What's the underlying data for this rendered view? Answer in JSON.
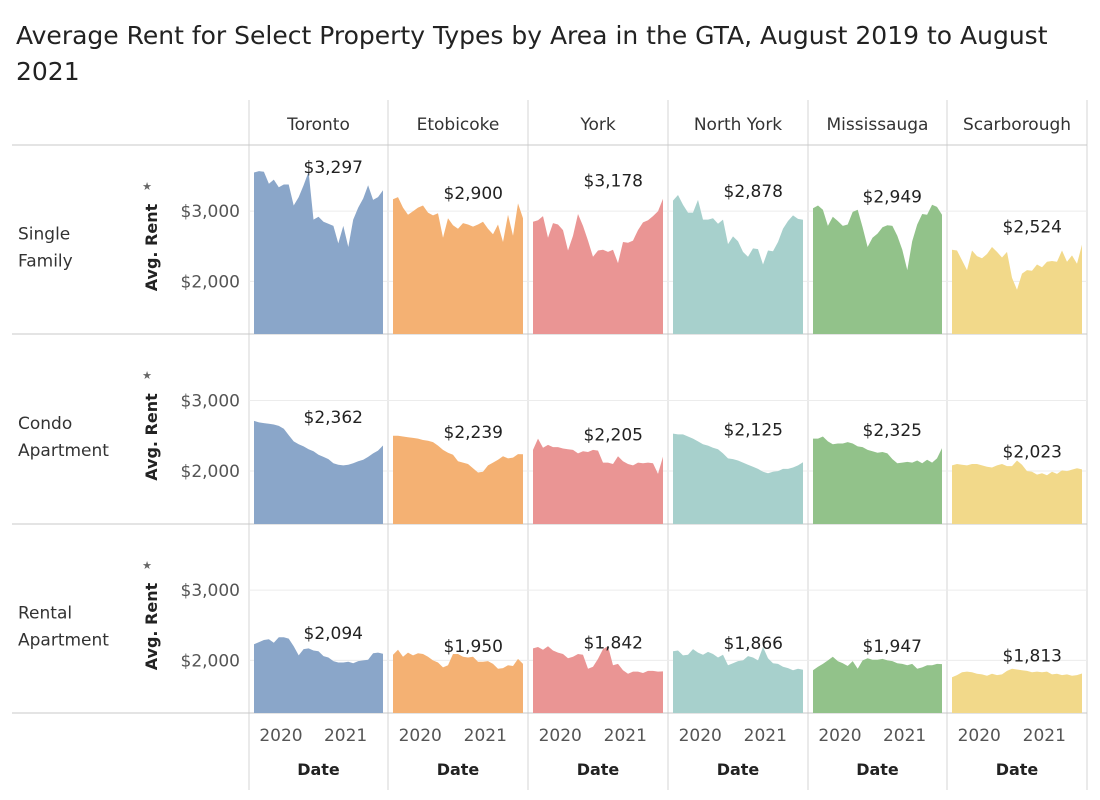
{
  "title": "Average Rent for Select Property Types by Area in the GTA, August 2019 to August 2021",
  "chart_data": {
    "type": "area",
    "title": "Average Rent for Select Property Types by Area in the GTA, August 2019 to August 2021",
    "xlabel": "Date",
    "ylabel": "Avg. Rent",
    "x_ticks": [
      "2020",
      "2021"
    ],
    "x_range": [
      "2019-08",
      "2021-08"
    ],
    "y_ticks": [
      {
        "label": "$2,000",
        "value": 2000
      },
      {
        "label": "$3,000",
        "value": 3000
      }
    ],
    "ylim": [
      1250,
      3800
    ],
    "grid": true,
    "columns": [
      {
        "name": "Toronto",
        "color": "#8aa6c9"
      },
      {
        "name": "Etobicoke",
        "color": "#f4b173"
      },
      {
        "name": "York",
        "color": "#ea9594"
      },
      {
        "name": "North York",
        "color": "#a7d0cc"
      },
      {
        "name": "Mississauga",
        "color": "#92c28a"
      },
      {
        "name": "Scarborough",
        "color": "#f2d98a"
      }
    ],
    "rows": [
      {
        "name": "Single\nFamily",
        "series": [
          {
            "area": "Toronto",
            "label": "$3,297",
            "values": [
              3550,
              3570,
              3560,
              3390,
              3450,
              3340,
              3380,
              3380,
              3080,
              3200,
              3370,
              3560,
              2880,
              2920,
              2850,
              2820,
              2790,
              2540,
              2790,
              2490,
              2880,
              3050,
              3180,
              3370,
              3160,
              3200,
              3297
            ]
          },
          {
            "area": "Etobicoke",
            "label": "$2,900",
            "values": [
              3170,
              3200,
              3050,
              2950,
              3000,
              3050,
              3080,
              2980,
              2940,
              2970,
              2620,
              2900,
              2800,
              2750,
              2830,
              2810,
              2780,
              2810,
              2850,
              2750,
              2670,
              2810,
              2560,
              2950,
              2650,
              3110,
              2900
            ]
          },
          {
            "area": "York",
            "label": "$3,178",
            "values": [
              2850,
              2870,
              2930,
              2620,
              2830,
              2810,
              2730,
              2440,
              2650,
              2960,
              2790,
              2580,
              2350,
              2440,
              2450,
              2420,
              2450,
              2260,
              2560,
              2550,
              2580,
              2730,
              2840,
              2870,
              2930,
              3000,
              3178
            ]
          },
          {
            "area": "North York",
            "label": "$2,878",
            "values": [
              3150,
              3230,
              3090,
              2980,
              2980,
              3160,
              2880,
              2880,
              2900,
              2820,
              2880,
              2530,
              2640,
              2570,
              2420,
              2350,
              2470,
              2460,
              2240,
              2440,
              2430,
              2560,
              2750,
              2860,
              2940,
              2890,
              2878
            ]
          },
          {
            "area": "Mississauga",
            "label": "$2,949",
            "values": [
              3040,
              3080,
              3020,
              2790,
              2920,
              2860,
              2790,
              2810,
              2990,
              3020,
              2770,
              2490,
              2620,
              2680,
              2770,
              2800,
              2790,
              2650,
              2450,
              2160,
              2570,
              2810,
              2960,
              2950,
              3090,
              3060,
              2949
            ]
          },
          {
            "area": "Scarborough",
            "label": "$2,524",
            "values": [
              2450,
              2440,
              2300,
              2160,
              2440,
              2360,
              2330,
              2390,
              2490,
              2420,
              2340,
              2420,
              2050,
              1880,
              2110,
              2160,
              2150,
              2240,
              2200,
              2280,
              2290,
              2280,
              2440,
              2280,
              2370,
              2250,
              2524
            ]
          }
        ]
      },
      {
        "name": "Condo\nApartment",
        "series": [
          {
            "area": "Toronto",
            "label": "$2,362",
            "values": [
              2710,
              2690,
              2680,
              2670,
              2660,
              2640,
              2600,
              2510,
              2420,
              2380,
              2350,
              2310,
              2280,
              2230,
              2200,
              2170,
              2110,
              2090,
              2080,
              2090,
              2110,
              2140,
              2160,
              2200,
              2250,
              2290,
              2362
            ]
          },
          {
            "area": "Etobicoke",
            "label": "$2,239",
            "values": [
              2500,
              2500,
              2490,
              2480,
              2470,
              2460,
              2440,
              2430,
              2410,
              2360,
              2300,
              2260,
              2230,
              2140,
              2120,
              2100,
              2040,
              1980,
              1990,
              2080,
              2120,
              2160,
              2210,
              2180,
              2190,
              2240,
              2239
            ]
          },
          {
            "area": "York",
            "label": "$2,205",
            "values": [
              2300,
              2460,
              2330,
              2370,
              2340,
              2340,
              2320,
              2310,
              2300,
              2250,
              2280,
              2270,
              2300,
              2290,
              2120,
              2120,
              2100,
              2210,
              2140,
              2100,
              2080,
              2120,
              2110,
              2120,
              2110,
              1960,
              2205
            ]
          },
          {
            "area": "North York",
            "label": "$2,125",
            "values": [
              2530,
              2520,
              2520,
              2490,
              2460,
              2420,
              2380,
              2360,
              2330,
              2310,
              2250,
              2180,
              2170,
              2150,
              2120,
              2090,
              2060,
              2030,
              1990,
              1970,
              1990,
              2000,
              2030,
              2030,
              2050,
              2080,
              2125
            ]
          },
          {
            "area": "Mississauga",
            "label": "$2,325",
            "values": [
              2460,
              2460,
              2490,
              2420,
              2380,
              2390,
              2390,
              2410,
              2390,
              2350,
              2340,
              2300,
              2280,
              2260,
              2270,
              2250,
              2170,
              2110,
              2120,
              2130,
              2120,
              2150,
              2110,
              2160,
              2120,
              2180,
              2325
            ]
          },
          {
            "area": "Scarborough",
            "label": "$2,023",
            "values": [
              2080,
              2100,
              2090,
              2080,
              2100,
              2100,
              2080,
              2060,
              2050,
              2080,
              2100,
              2070,
              2070,
              2150,
              2090,
              2000,
              1990,
              1950,
              1970,
              1940,
              1990,
              1960,
              2010,
              2000,
              2020,
              2040,
              2023
            ]
          }
        ]
      },
      {
        "name": "Rental\nApartment",
        "series": [
          {
            "area": "Toronto",
            "label": "$2,094",
            "values": [
              2230,
              2260,
              2290,
              2300,
              2250,
              2330,
              2330,
              2310,
              2200,
              2070,
              2160,
              2170,
              2140,
              2130,
              2060,
              2040,
              1990,
              1970,
              1970,
              1980,
              1960,
              1990,
              2000,
              2010,
              2100,
              2110,
              2094
            ]
          },
          {
            "area": "Etobicoke",
            "label": "$1,950",
            "values": [
              2080,
              2150,
              2050,
              2110,
              2070,
              2100,
              2090,
              2050,
              2000,
              1970,
              1900,
              1930,
              2090,
              2090,
              2050,
              2040,
              2050,
              1980,
              1980,
              1990,
              1950,
              1880,
              1890,
              1930,
              1920,
              2020,
              1950
            ]
          },
          {
            "area": "York",
            "label": "$1,842",
            "values": [
              2170,
              2190,
              2150,
              2200,
              2140,
              2110,
              2090,
              2030,
              2050,
              2090,
              2080,
              1880,
              1910,
              2020,
              2160,
              2200,
              1930,
              1950,
              1860,
              1810,
              1840,
              1840,
              1820,
              1850,
              1850,
              1840,
              1842
            ]
          },
          {
            "area": "North York",
            "label": "$1,866",
            "values": [
              2130,
              2140,
              2070,
              2080,
              2160,
              2110,
              2080,
              2120,
              2090,
              2040,
              2080,
              1930,
              1960,
              1990,
              2000,
              2060,
              2040,
              2000,
              2190,
              2030,
              1960,
              1950,
              1910,
              1890,
              1860,
              1880,
              1866
            ]
          },
          {
            "area": "Mississauga",
            "label": "$1,947",
            "values": [
              1860,
              1910,
              1950,
              2000,
              2050,
              1990,
              1960,
              1920,
              1990,
              1880,
              2000,
              2030,
              2010,
              2010,
              2020,
              2000,
              1990,
              1960,
              1950,
              1930,
              1950,
              1880,
              1900,
              1930,
              1930,
              1950,
              1947
            ]
          },
          {
            "area": "Scarborough",
            "label": "$1,813",
            "values": [
              1760,
              1790,
              1830,
              1840,
              1830,
              1810,
              1800,
              1780,
              1810,
              1790,
              1800,
              1850,
              1880,
              1870,
              1860,
              1850,
              1830,
              1840,
              1830,
              1840,
              1800,
              1810,
              1790,
              1800,
              1780,
              1790,
              1813
            ]
          }
        ]
      }
    ]
  }
}
